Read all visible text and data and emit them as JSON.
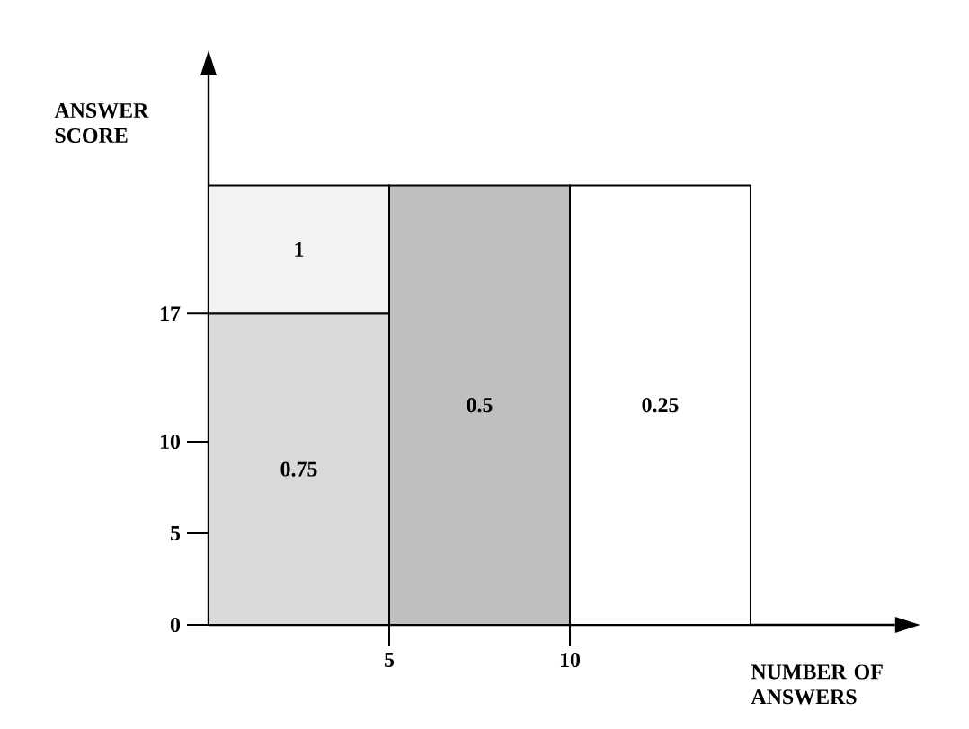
{
  "chart_data": {
    "type": "bar",
    "stacked": true,
    "xlabel": "NUMBER OF ANSWERS",
    "ylabel": "ANSWER SCORE",
    "x": [
      2.5,
      7.5,
      12.5
    ],
    "series": [
      {
        "values": [
          17,
          24,
          24
        ],
        "colors": [
          "#d9d9d9",
          "#bfbfbf",
          "#ffffff"
        ]
      },
      {
        "values": [
          7,
          null,
          null
        ],
        "colors": [
          "#f2f2f2",
          null,
          null
        ]
      }
    ],
    "annotations": [
      "0.75",
      "0.5",
      "0.25",
      "1"
    ],
    "xlim": [
      0,
      19
    ],
    "ylim": [
      0,
      30
    ],
    "xticks": [
      5,
      10
    ],
    "yticks": [
      0,
      5,
      10,
      17
    ]
  }
}
